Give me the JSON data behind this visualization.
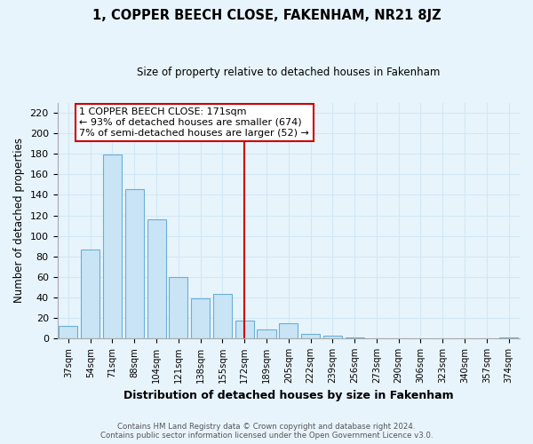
{
  "title": "1, COPPER BEECH CLOSE, FAKENHAM, NR21 8JZ",
  "subtitle": "Size of property relative to detached houses in Fakenham",
  "xlabel": "Distribution of detached houses by size in Fakenham",
  "ylabel": "Number of detached properties",
  "bar_labels": [
    "37sqm",
    "54sqm",
    "71sqm",
    "88sqm",
    "104sqm",
    "121sqm",
    "138sqm",
    "155sqm",
    "172sqm",
    "189sqm",
    "205sqm",
    "222sqm",
    "239sqm",
    "256sqm",
    "273sqm",
    "290sqm",
    "306sqm",
    "323sqm",
    "340sqm",
    "357sqm",
    "374sqm"
  ],
  "bar_values": [
    12,
    87,
    179,
    146,
    116,
    60,
    39,
    43,
    17,
    9,
    15,
    4,
    3,
    1,
    0,
    0,
    0,
    0,
    0,
    0,
    1
  ],
  "bar_color": "#c8e4f5",
  "bar_edge_color": "#6aafd6",
  "property_line_x": 8,
  "property_sqm": 171,
  "annotation_text_line1": "1 COPPER BEECH CLOSE: 171sqm",
  "annotation_text_line2": "← 93% of detached houses are smaller (674)",
  "annotation_text_line3": "7% of semi-detached houses are larger (52) →",
  "annotation_box_color": "#ffffff",
  "annotation_box_edge_color": "#cc0000",
  "vline_color": "#cc0000",
  "ylim": [
    0,
    230
  ],
  "yticks": [
    0,
    20,
    40,
    60,
    80,
    100,
    120,
    140,
    160,
    180,
    200,
    220
  ],
  "footer_line1": "Contains HM Land Registry data © Crown copyright and database right 2024.",
  "footer_line2": "Contains public sector information licensed under the Open Government Licence v3.0.",
  "bg_color": "#e8f4fc",
  "grid_color": "#d0e8f5"
}
